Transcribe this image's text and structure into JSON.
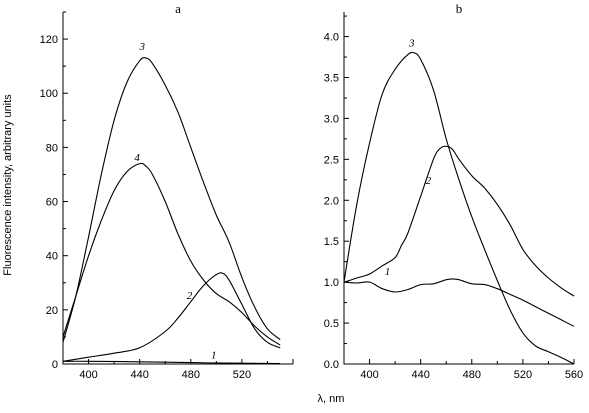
{
  "figure": {
    "ylabel": "Fluorescence intensity, arbitrary units",
    "xlabel": "λ, nm"
  },
  "chart_data": [
    {
      "type": "line",
      "title": "a",
      "xlabel": "λ, nm",
      "ylabel": "Fluorescence intensity, arbitrary units",
      "xlim": [
        380,
        560
      ],
      "ylim": [
        0,
        130
      ],
      "xticks": [
        400,
        440,
        480,
        520,
        560
      ],
      "xticks_labeled": [
        400,
        440,
        480,
        520
      ],
      "yticks": [
        0,
        20,
        40,
        60,
        80,
        100,
        120
      ],
      "series": [
        {
          "name": "1",
          "label_at": [
            498,
            2
          ],
          "x": [
            380,
            400,
            440,
            480,
            520,
            550
          ],
          "y": [
            1,
            1,
            0.8,
            0.5,
            0.3,
            0.2
          ]
        },
        {
          "name": "2",
          "label_at": [
            479,
            24
          ],
          "x": [
            380,
            400,
            420,
            440,
            460,
            470,
            480,
            490,
            500,
            505,
            510,
            520,
            530,
            540,
            550
          ],
          "y": [
            1,
            2.5,
            4,
            6,
            12,
            17,
            23,
            29,
            33,
            33.5,
            31,
            22,
            13,
            8,
            6
          ]
        },
        {
          "name": "3",
          "label_at": [
            442,
            116
          ],
          "x": [
            380,
            390,
            400,
            410,
            420,
            430,
            440,
            445,
            450,
            460,
            470,
            480,
            490,
            500,
            510,
            520,
            530,
            540,
            550
          ],
          "y": [
            8,
            25,
            47,
            70,
            90,
            104,
            112,
            113,
            111,
            103,
            93,
            80,
            67,
            55,
            45,
            32,
            21,
            13,
            9
          ]
        },
        {
          "name": "4",
          "label_at": [
            438,
            75
          ],
          "x": [
            380,
            390,
            400,
            410,
            420,
            430,
            440,
            445,
            450,
            460,
            470,
            480,
            490,
            500,
            510,
            520,
            530,
            540,
            550
          ],
          "y": [
            10,
            25,
            40,
            53,
            64,
            71,
            74,
            73,
            70,
            60,
            48,
            38,
            31,
            26,
            23,
            19,
            14,
            10,
            7
          ]
        }
      ]
    },
    {
      "type": "line",
      "title": "b",
      "xlabel": "λ, nm",
      "xlim": [
        380,
        560
      ],
      "ylim": [
        0,
        4.3
      ],
      "xticks": [
        400,
        440,
        480,
        520,
        560
      ],
      "xticks_labeled": [
        400,
        440,
        480,
        520,
        560
      ],
      "yticks": [
        0.0,
        0.5,
        1.0,
        1.5,
        2.0,
        2.5,
        3.0,
        3.5,
        4.0
      ],
      "series": [
        {
          "name": "1",
          "label_at": [
            414,
            1.09
          ],
          "x": [
            380,
            390,
            400,
            410,
            420,
            430,
            440,
            450,
            460,
            465,
            470,
            480,
            490,
            500,
            510,
            520,
            530,
            540,
            550,
            560
          ],
          "y": [
            1.0,
            0.99,
            1.0,
            0.92,
            0.88,
            0.91,
            0.97,
            0.98,
            1.03,
            1.04,
            1.03,
            0.98,
            0.97,
            0.92,
            0.85,
            0.78,
            0.7,
            0.62,
            0.54,
            0.46
          ]
        },
        {
          "name": "2",
          "label_at": [
            446,
            2.2
          ],
          "x": [
            380,
            390,
            400,
            410,
            420,
            425,
            430,
            440,
            450,
            455,
            460,
            465,
            470,
            480,
            490,
            500,
            510,
            520,
            530,
            540,
            550,
            560
          ],
          "y": [
            1.0,
            1.05,
            1.1,
            1.2,
            1.3,
            1.45,
            1.6,
            2.05,
            2.5,
            2.63,
            2.66,
            2.62,
            2.5,
            2.3,
            2.15,
            1.95,
            1.7,
            1.4,
            1.2,
            1.05,
            0.93,
            0.83
          ]
        },
        {
          "name": "3",
          "label_at": [
            433,
            3.88
          ],
          "x": [
            380,
            390,
            400,
            410,
            420,
            430,
            435,
            440,
            450,
            460,
            470,
            480,
            490,
            500,
            510,
            520,
            530,
            540,
            550,
            560
          ],
          "y": [
            1.0,
            1.95,
            2.7,
            3.3,
            3.6,
            3.78,
            3.8,
            3.72,
            3.35,
            2.75,
            2.25,
            1.8,
            1.4,
            1.02,
            0.66,
            0.38,
            0.22,
            0.15,
            0.08,
            0.0
          ]
        }
      ]
    }
  ]
}
